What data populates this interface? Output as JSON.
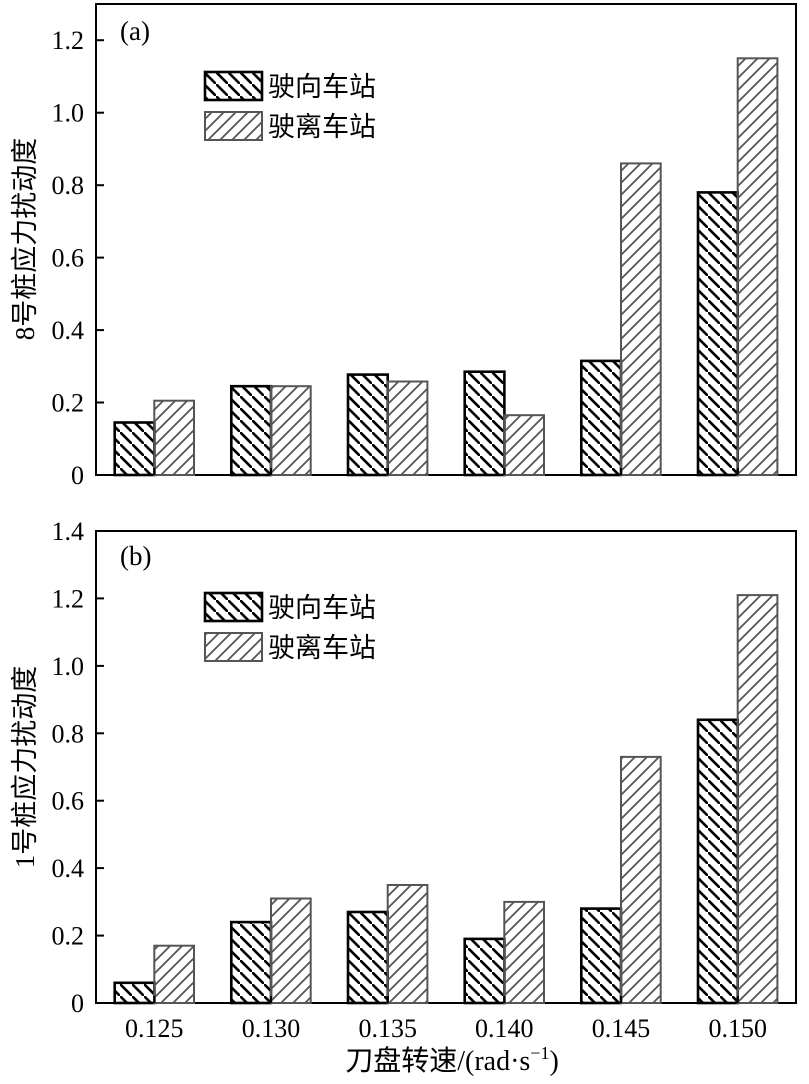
{
  "figure": {
    "xlabel": "刀盘转速/(rad·s",
    "xlabel_sup": "−1",
    "xlabel_close": ")"
  },
  "chart_data": [
    {
      "type": "bar",
      "panel_label": "(a)",
      "categories": [
        "0.125",
        "0.130",
        "0.135",
        "0.140",
        "0.145",
        "0.150"
      ],
      "series": [
        {
          "name": "驶向车站",
          "values": [
            0.145,
            0.245,
            0.277,
            0.285,
            0.315,
            0.78
          ],
          "hatch": "back-diagonal",
          "stroke": "#000000"
        },
        {
          "name": "驶离车站",
          "values": [
            0.205,
            0.245,
            0.258,
            0.165,
            0.86,
            1.15
          ],
          "hatch": "forward-diagonal",
          "stroke": "#555555"
        }
      ],
      "ylabel": "8号桩应力扰动度",
      "xlabel": "",
      "ylim": [
        0,
        1.3
      ],
      "yticks": [
        "0",
        "0.2",
        "0.4",
        "0.6",
        "0.8",
        "1.0",
        "1.2"
      ],
      "ytick_values": [
        0,
        0.2,
        0.4,
        0.6,
        0.8,
        1.0,
        1.2
      ],
      "show_xtick_labels": false,
      "legend_position": "top-left",
      "grid": false
    },
    {
      "type": "bar",
      "panel_label": "(b)",
      "categories": [
        "0.125",
        "0.130",
        "0.135",
        "0.140",
        "0.145",
        "0.150"
      ],
      "series": [
        {
          "name": "驶向车站",
          "values": [
            0.06,
            0.24,
            0.27,
            0.19,
            0.28,
            0.84
          ],
          "hatch": "back-diagonal",
          "stroke": "#000000"
        },
        {
          "name": "驶离车站",
          "values": [
            0.17,
            0.31,
            0.35,
            0.3,
            0.73,
            1.21
          ],
          "hatch": "forward-diagonal",
          "stroke": "#555555"
        }
      ],
      "ylabel": "1号桩应力扰动度",
      "xlabel": "刀盘转速/(rad·s−1)",
      "ylim": [
        0,
        1.4
      ],
      "yticks": [
        "0",
        "0.2",
        "0.4",
        "0.6",
        "0.8",
        "1.0",
        "1.2",
        "1.4"
      ],
      "ytick_values": [
        0,
        0.2,
        0.4,
        0.6,
        0.8,
        1.0,
        1.2,
        1.4
      ],
      "show_xtick_labels": true,
      "legend_position": "top-left",
      "grid": false
    }
  ]
}
